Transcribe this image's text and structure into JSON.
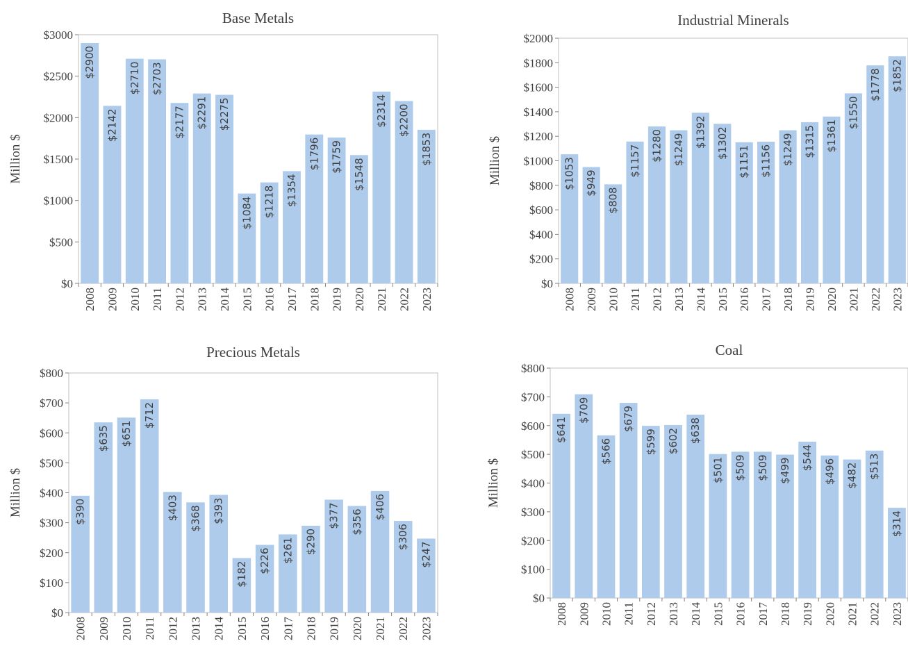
{
  "chart_data": [
    {
      "type": "bar",
      "title": "Base Metals",
      "ylabel": "Million $",
      "categories": [
        "2008",
        "2009",
        "2010",
        "2011",
        "2012",
        "2013",
        "2014",
        "2015",
        "2016",
        "2017",
        "2018",
        "2019",
        "2020",
        "2021",
        "2022",
        "2023"
      ],
      "values": [
        2900,
        2142,
        2710,
        2703,
        2177,
        2291,
        2275,
        1084,
        1218,
        1354,
        1796,
        1759,
        1548,
        2314,
        2200,
        1853
      ],
      "data_labels": [
        "$2900",
        "$2142",
        "$2710",
        "$2703",
        "$2177",
        "$2291",
        "$2275",
        "$1084",
        "$1218",
        "$1354",
        "$1796",
        "$1759",
        "$1548",
        "$2314",
        "$2200",
        "$1853"
      ],
      "yticks": [
        0,
        500,
        1000,
        1500,
        2000,
        2500,
        3000
      ],
      "ytick_labels": [
        "$0",
        "$500",
        "$1000",
        "$1500",
        "$2000",
        "$2500",
        "$3000"
      ],
      "ylim": [
        0,
        3000
      ],
      "grid": false,
      "bar_color": "#aecbeb"
    },
    {
      "type": "bar",
      "title": "Industrial Minerals",
      "ylabel": "Million $",
      "categories": [
        "2008",
        "2009",
        "2010",
        "2011",
        "2012",
        "2013",
        "2014",
        "2015",
        "2016",
        "2017",
        "2018",
        "2019",
        "2020",
        "2021",
        "2022",
        "2023"
      ],
      "values": [
        1053,
        949,
        808,
        1157,
        1280,
        1249,
        1392,
        1302,
        1151,
        1156,
        1249,
        1315,
        1361,
        1550,
        1778,
        1852
      ],
      "data_labels": [
        "$1053",
        "$949",
        "$808",
        "$1157",
        "$1280",
        "$1249",
        "$1392",
        "$1302",
        "$1151",
        "$1156",
        "$1249",
        "$1315",
        "$1361",
        "$1550",
        "$1778",
        "$1852"
      ],
      "yticks": [
        0,
        200,
        400,
        600,
        800,
        1000,
        1200,
        1400,
        1600,
        1800,
        2000
      ],
      "ytick_labels": [
        "$0",
        "$200",
        "$400",
        "$600",
        "$800",
        "$1000",
        "$1200",
        "$1400",
        "$1600",
        "$1800",
        "$2000"
      ],
      "ylim": [
        0,
        2000
      ],
      "grid": false,
      "bar_color": "#aecbeb"
    },
    {
      "type": "bar",
      "title": "Precious Metals",
      "ylabel": "Million $",
      "categories": [
        "2008",
        "2009",
        "2010",
        "2011",
        "2012",
        "2013",
        "2014",
        "2015",
        "2016",
        "2017",
        "2018",
        "2019",
        "2020",
        "2021",
        "2022",
        "2023"
      ],
      "values": [
        390,
        635,
        651,
        712,
        403,
        368,
        393,
        182,
        226,
        261,
        290,
        377,
        356,
        406,
        306,
        247
      ],
      "data_labels": [
        "$390",
        "$635",
        "$651",
        "$712",
        "$403",
        "$368",
        "$393",
        "$182",
        "$226",
        "$261",
        "$290",
        "$377",
        "$356",
        "$406",
        "$306",
        "$247"
      ],
      "yticks": [
        0,
        100,
        200,
        300,
        400,
        500,
        600,
        700,
        800
      ],
      "ytick_labels": [
        "$0",
        "$100",
        "$200",
        "$300",
        "$400",
        "$500",
        "$600",
        "$700",
        "$800"
      ],
      "ylim": [
        0,
        800
      ],
      "grid": false,
      "bar_color": "#aecbeb"
    },
    {
      "type": "bar",
      "title": "Coal",
      "ylabel": "Million $",
      "categories": [
        "2008",
        "2009",
        "2010",
        "2011",
        "2012",
        "2013",
        "2014",
        "2015",
        "2016",
        "2017",
        "2018",
        "2019",
        "2020",
        "2021",
        "2022",
        "2023"
      ],
      "values": [
        641,
        709,
        566,
        679,
        599,
        602,
        638,
        501,
        509,
        509,
        499,
        544,
        496,
        482,
        513,
        314
      ],
      "data_labels": [
        "$641",
        "$709",
        "$566",
        "$679",
        "$599",
        "$602",
        "$638",
        "$501",
        "$509",
        "$509",
        "$499",
        "$544",
        "$496",
        "$482",
        "$513",
        "$314"
      ],
      "yticks": [
        0,
        100,
        200,
        300,
        400,
        500,
        600,
        700,
        800
      ],
      "ytick_labels": [
        "$0",
        "$100",
        "$200",
        "$300",
        "$400",
        "$500",
        "$600",
        "$700",
        "$800"
      ],
      "ylim": [
        0,
        800
      ],
      "grid": false,
      "bar_color": "#aecbeb"
    }
  ]
}
